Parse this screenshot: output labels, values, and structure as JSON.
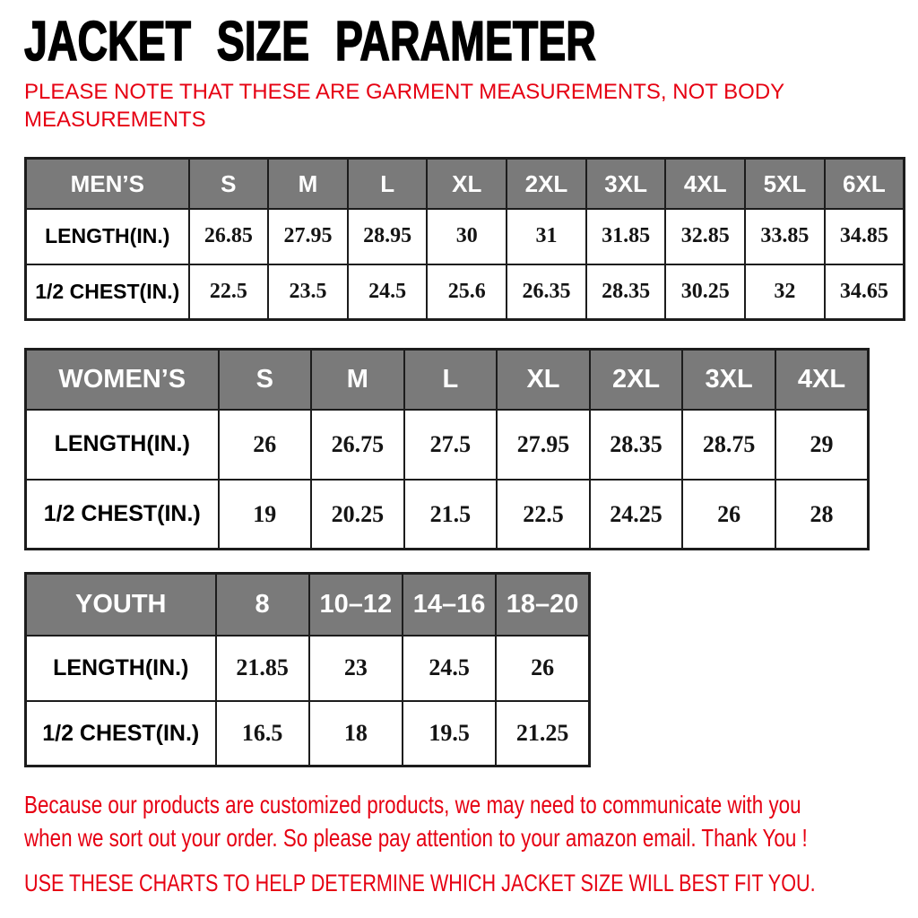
{
  "title": "JACKET SIZE PARAMETER",
  "note_lines": [
    "PLEASE NOTE THAT THESE ARE GARMENT MEASUREMENTS, NOT BODY",
    "MEASUREMENTS"
  ],
  "tables": [
    {
      "name": "mens",
      "header_label": "MEN’S",
      "sizes": [
        "S",
        "M",
        "L",
        "XL",
        "2XL",
        "3XL",
        "4XL",
        "5XL",
        "6XL"
      ],
      "rows": [
        {
          "label": "LENGTH(IN.)",
          "values": [
            "26.85",
            "27.95",
            "28.95",
            "30",
            "31",
            "31.85",
            "32.85",
            "33.85",
            "34.85"
          ]
        },
        {
          "label": "1/2 CHEST(IN.)",
          "values": [
            "22.5",
            "23.5",
            "24.5",
            "25.6",
            "26.35",
            "28.35",
            "30.25",
            "32",
            "34.65"
          ]
        }
      ]
    },
    {
      "name": "womens",
      "header_label": "WOMEN’S",
      "sizes": [
        "S",
        "M",
        "L",
        "XL",
        "2XL",
        "3XL",
        "4XL"
      ],
      "rows": [
        {
          "label": "LENGTH(IN.)",
          "values": [
            "26",
            "26.75",
            "27.5",
            "27.95",
            "28.35",
            "28.75",
            "29"
          ]
        },
        {
          "label": "1/2 CHEST(IN.)",
          "values": [
            "19",
            "20.25",
            "21.5",
            "22.5",
            "24.25",
            "26",
            "28"
          ]
        }
      ]
    },
    {
      "name": "youth",
      "header_label": "YOUTH",
      "sizes": [
        "8",
        "10–12",
        "14–16",
        "18–20"
      ],
      "rows": [
        {
          "label": "LENGTH(IN.)",
          "values": [
            "21.85",
            "23",
            "24.5",
            "26"
          ]
        },
        {
          "label": "1/2 CHEST(IN.)",
          "values": [
            "16.5",
            "18",
            "19.5",
            "21.25"
          ]
        }
      ]
    }
  ],
  "footer": {
    "paragraph_lines": [
      "Because our products are customized products, we may need to communicate with you",
      "when we sort out your order. So please pay attention to your amazon email. Thank You !"
    ],
    "final_line": "USE THESE CHARTS TO HELP DETERMINE WHICH JACKET SIZE WILL BEST FIT YOU."
  },
  "colors": {
    "accent_red": "#e60012",
    "header_grey": "#7a7a7a",
    "border_dark": "#1c1c1c",
    "background": "#ffffff"
  }
}
